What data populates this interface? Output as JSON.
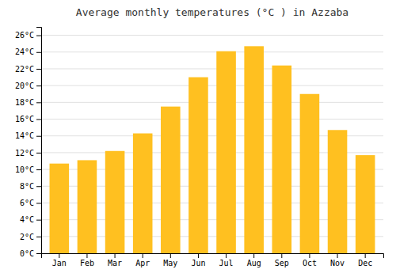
{
  "chart_data": {
    "type": "bar",
    "title": "Average monthly temperatures (°C ) in Azzaba",
    "categories": [
      "Jan",
      "Feb",
      "Mar",
      "Apr",
      "May",
      "Jun",
      "Jul",
      "Aug",
      "Sep",
      "Oct",
      "Nov",
      "Dec"
    ],
    "values": [
      10.7,
      11.1,
      12.2,
      14.3,
      17.5,
      21.0,
      24.1,
      24.7,
      22.4,
      19.0,
      14.7,
      11.7
    ],
    "color": "#FFC020",
    "ylim": [
      0,
      27
    ],
    "yticks": [
      {
        "value": 0,
        "label": "0°C"
      },
      {
        "value": 2,
        "label": "2°C"
      },
      {
        "value": 4,
        "label": "4°C"
      },
      {
        "value": 6,
        "label": "6°C"
      },
      {
        "value": 8,
        "label": "8°C"
      },
      {
        "value": 10,
        "label": "10°C"
      },
      {
        "value": 12,
        "label": "12°C"
      },
      {
        "value": 14,
        "label": "14°C"
      },
      {
        "value": 16,
        "label": "16°C"
      },
      {
        "value": 18,
        "label": "18°C"
      },
      {
        "value": 20,
        "label": "20°C"
      },
      {
        "value": 22,
        "label": "22°C"
      },
      {
        "value": 24,
        "label": "24°C"
      },
      {
        "value": 26,
        "label": "26°C"
      }
    ],
    "grid": true
  }
}
